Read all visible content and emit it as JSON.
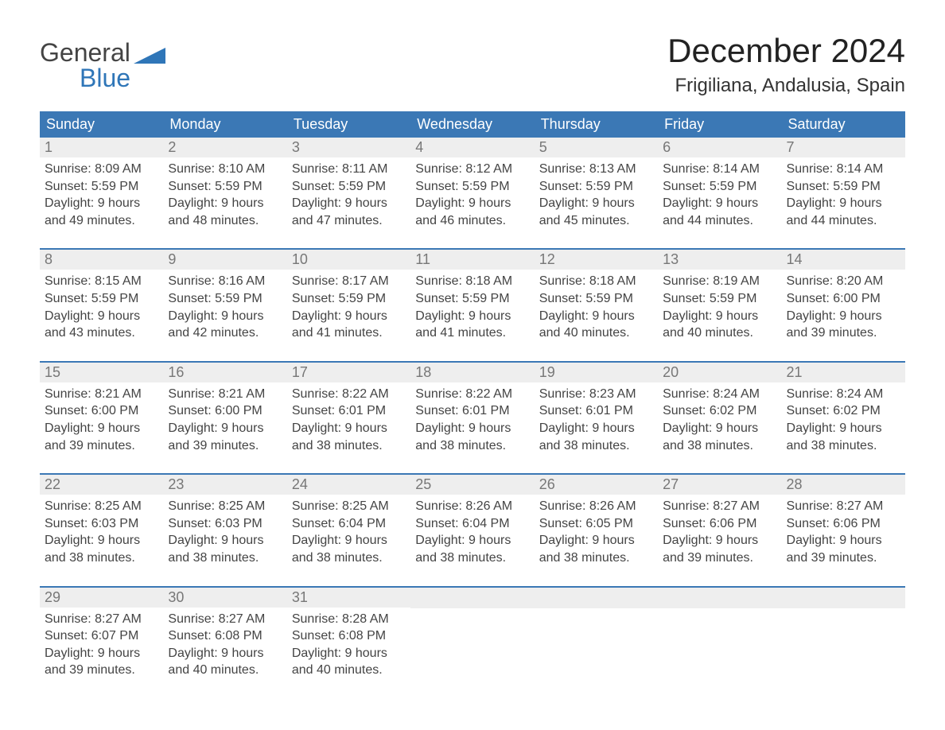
{
  "brand": {
    "word1": "General",
    "word2": "Blue"
  },
  "title": "December 2024",
  "location": "Frigiliana, Andalusia, Spain",
  "colors": {
    "header_bg": "#3b78b5",
    "header_text": "#ffffff",
    "strip_bg": "#eeeeee",
    "daynum_text": "#777777",
    "body_text": "#444444",
    "brand_blue": "#2f76b8",
    "brand_dark": "#444444",
    "background": "#ffffff"
  },
  "day_headers": [
    "Sunday",
    "Monday",
    "Tuesday",
    "Wednesday",
    "Thursday",
    "Friday",
    "Saturday"
  ],
  "weeks": [
    [
      {
        "n": "1",
        "sr": "Sunrise: 8:09 AM",
        "ss": "Sunset: 5:59 PM",
        "d1": "Daylight: 9 hours",
        "d2": "and 49 minutes."
      },
      {
        "n": "2",
        "sr": "Sunrise: 8:10 AM",
        "ss": "Sunset: 5:59 PM",
        "d1": "Daylight: 9 hours",
        "d2": "and 48 minutes."
      },
      {
        "n": "3",
        "sr": "Sunrise: 8:11 AM",
        "ss": "Sunset: 5:59 PM",
        "d1": "Daylight: 9 hours",
        "d2": "and 47 minutes."
      },
      {
        "n": "4",
        "sr": "Sunrise: 8:12 AM",
        "ss": "Sunset: 5:59 PM",
        "d1": "Daylight: 9 hours",
        "d2": "and 46 minutes."
      },
      {
        "n": "5",
        "sr": "Sunrise: 8:13 AM",
        "ss": "Sunset: 5:59 PM",
        "d1": "Daylight: 9 hours",
        "d2": "and 45 minutes."
      },
      {
        "n": "6",
        "sr": "Sunrise: 8:14 AM",
        "ss": "Sunset: 5:59 PM",
        "d1": "Daylight: 9 hours",
        "d2": "and 44 minutes."
      },
      {
        "n": "7",
        "sr": "Sunrise: 8:14 AM",
        "ss": "Sunset: 5:59 PM",
        "d1": "Daylight: 9 hours",
        "d2": "and 44 minutes."
      }
    ],
    [
      {
        "n": "8",
        "sr": "Sunrise: 8:15 AM",
        "ss": "Sunset: 5:59 PM",
        "d1": "Daylight: 9 hours",
        "d2": "and 43 minutes."
      },
      {
        "n": "9",
        "sr": "Sunrise: 8:16 AM",
        "ss": "Sunset: 5:59 PM",
        "d1": "Daylight: 9 hours",
        "d2": "and 42 minutes."
      },
      {
        "n": "10",
        "sr": "Sunrise: 8:17 AM",
        "ss": "Sunset: 5:59 PM",
        "d1": "Daylight: 9 hours",
        "d2": "and 41 minutes."
      },
      {
        "n": "11",
        "sr": "Sunrise: 8:18 AM",
        "ss": "Sunset: 5:59 PM",
        "d1": "Daylight: 9 hours",
        "d2": "and 41 minutes."
      },
      {
        "n": "12",
        "sr": "Sunrise: 8:18 AM",
        "ss": "Sunset: 5:59 PM",
        "d1": "Daylight: 9 hours",
        "d2": "and 40 minutes."
      },
      {
        "n": "13",
        "sr": "Sunrise: 8:19 AM",
        "ss": "Sunset: 5:59 PM",
        "d1": "Daylight: 9 hours",
        "d2": "and 40 minutes."
      },
      {
        "n": "14",
        "sr": "Sunrise: 8:20 AM",
        "ss": "Sunset: 6:00 PM",
        "d1": "Daylight: 9 hours",
        "d2": "and 39 minutes."
      }
    ],
    [
      {
        "n": "15",
        "sr": "Sunrise: 8:21 AM",
        "ss": "Sunset: 6:00 PM",
        "d1": "Daylight: 9 hours",
        "d2": "and 39 minutes."
      },
      {
        "n": "16",
        "sr": "Sunrise: 8:21 AM",
        "ss": "Sunset: 6:00 PM",
        "d1": "Daylight: 9 hours",
        "d2": "and 39 minutes."
      },
      {
        "n": "17",
        "sr": "Sunrise: 8:22 AM",
        "ss": "Sunset: 6:01 PM",
        "d1": "Daylight: 9 hours",
        "d2": "and 38 minutes."
      },
      {
        "n": "18",
        "sr": "Sunrise: 8:22 AM",
        "ss": "Sunset: 6:01 PM",
        "d1": "Daylight: 9 hours",
        "d2": "and 38 minutes."
      },
      {
        "n": "19",
        "sr": "Sunrise: 8:23 AM",
        "ss": "Sunset: 6:01 PM",
        "d1": "Daylight: 9 hours",
        "d2": "and 38 minutes."
      },
      {
        "n": "20",
        "sr": "Sunrise: 8:24 AM",
        "ss": "Sunset: 6:02 PM",
        "d1": "Daylight: 9 hours",
        "d2": "and 38 minutes."
      },
      {
        "n": "21",
        "sr": "Sunrise: 8:24 AM",
        "ss": "Sunset: 6:02 PM",
        "d1": "Daylight: 9 hours",
        "d2": "and 38 minutes."
      }
    ],
    [
      {
        "n": "22",
        "sr": "Sunrise: 8:25 AM",
        "ss": "Sunset: 6:03 PM",
        "d1": "Daylight: 9 hours",
        "d2": "and 38 minutes."
      },
      {
        "n": "23",
        "sr": "Sunrise: 8:25 AM",
        "ss": "Sunset: 6:03 PM",
        "d1": "Daylight: 9 hours",
        "d2": "and 38 minutes."
      },
      {
        "n": "24",
        "sr": "Sunrise: 8:25 AM",
        "ss": "Sunset: 6:04 PM",
        "d1": "Daylight: 9 hours",
        "d2": "and 38 minutes."
      },
      {
        "n": "25",
        "sr": "Sunrise: 8:26 AM",
        "ss": "Sunset: 6:04 PM",
        "d1": "Daylight: 9 hours",
        "d2": "and 38 minutes."
      },
      {
        "n": "26",
        "sr": "Sunrise: 8:26 AM",
        "ss": "Sunset: 6:05 PM",
        "d1": "Daylight: 9 hours",
        "d2": "and 38 minutes."
      },
      {
        "n": "27",
        "sr": "Sunrise: 8:27 AM",
        "ss": "Sunset: 6:06 PM",
        "d1": "Daylight: 9 hours",
        "d2": "and 39 minutes."
      },
      {
        "n": "28",
        "sr": "Sunrise: 8:27 AM",
        "ss": "Sunset: 6:06 PM",
        "d1": "Daylight: 9 hours",
        "d2": "and 39 minutes."
      }
    ],
    [
      {
        "n": "29",
        "sr": "Sunrise: 8:27 AM",
        "ss": "Sunset: 6:07 PM",
        "d1": "Daylight: 9 hours",
        "d2": "and 39 minutes."
      },
      {
        "n": "30",
        "sr": "Sunrise: 8:27 AM",
        "ss": "Sunset: 6:08 PM",
        "d1": "Daylight: 9 hours",
        "d2": "and 40 minutes."
      },
      {
        "n": "31",
        "sr": "Sunrise: 8:28 AM",
        "ss": "Sunset: 6:08 PM",
        "d1": "Daylight: 9 hours",
        "d2": "and 40 minutes."
      },
      null,
      null,
      null,
      null
    ]
  ]
}
